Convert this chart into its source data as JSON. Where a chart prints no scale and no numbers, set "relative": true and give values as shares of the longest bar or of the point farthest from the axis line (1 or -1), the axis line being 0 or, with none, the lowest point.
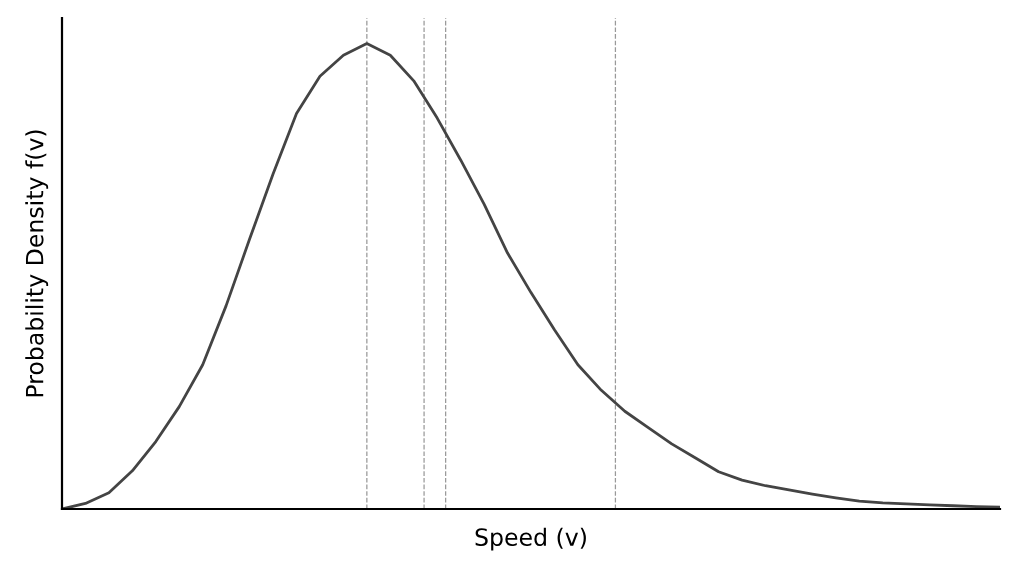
{
  "chart_data": {
    "type": "line",
    "xlabel": "Speed (v)",
    "ylabel": "Probability Density f(v)",
    "relative": true,
    "categories": [
      null,
      null,
      null,
      null,
      null,
      null,
      null,
      null,
      null,
      null,
      null,
      null,
      null,
      null,
      null,
      null,
      null,
      null,
      null,
      null,
      null,
      null,
      null,
      null,
      null,
      null,
      null,
      null,
      null,
      null,
      null,
      null,
      null,
      null,
      null,
      null,
      null,
      null,
      null,
      null,
      null
    ],
    "series": [
      {
        "color": "#444444",
        "values": [
          0,
          0.012,
          0.035,
          0.082,
          0.145,
          0.22,
          0.31,
          0.437,
          0.58,
          0.72,
          0.85,
          0.93,
          0.975,
          1.0,
          0.975,
          0.92,
          0.84,
          0.75,
          0.655,
          0.55,
          0.465,
          0.385,
          0.31,
          0.255,
          0.21,
          0.175,
          0.14,
          0.11,
          0.08,
          0.062,
          0.05,
          0.041,
          0.032,
          0.024,
          0.017,
          0.013,
          0.011,
          0.009,
          0.007,
          0.005,
          0.004
        ]
      }
    ]
  }
}
